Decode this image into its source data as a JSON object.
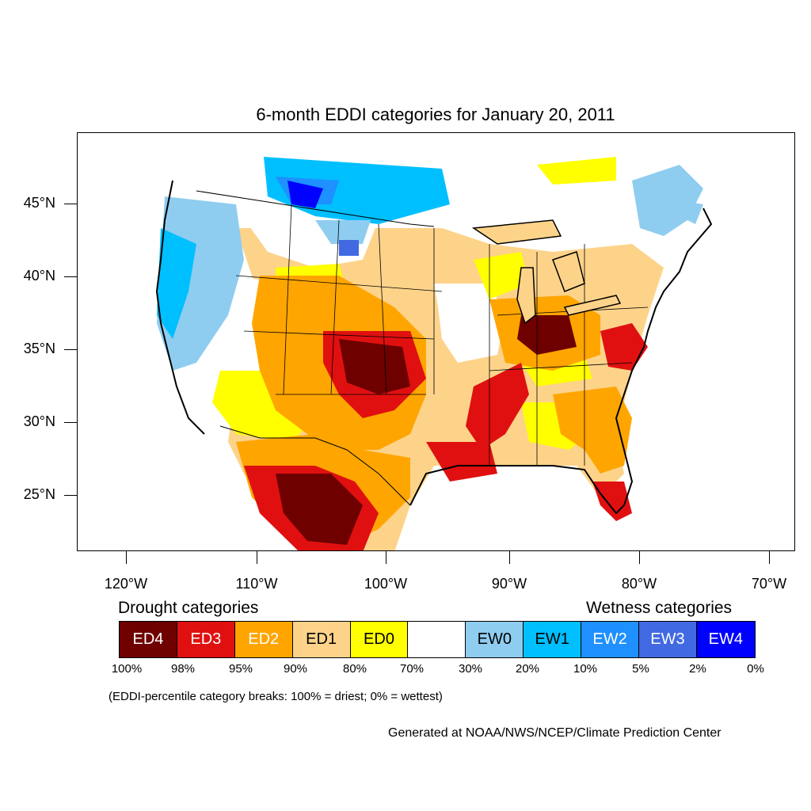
{
  "title": "6-month EDDI categories for January 20, 2011",
  "axes": {
    "lat_labels": [
      "45°N",
      "40°N",
      "35°N",
      "30°N",
      "25°N"
    ],
    "lon_labels": [
      "120°W",
      "110°W",
      "100°W",
      "90°W",
      "80°W",
      "70°W"
    ]
  },
  "legend": {
    "drought_title": "Drought categories",
    "wetness_title": "Wetness categories",
    "categories": [
      {
        "label": "ED4",
        "color": "#6e0000",
        "text_color": "#ffffff"
      },
      {
        "label": "ED3",
        "color": "#e01010",
        "text_color": "#ffffff"
      },
      {
        "label": "ED2",
        "color": "#ffa500",
        "text_color": "#ffffff"
      },
      {
        "label": "ED1",
        "color": "#fdd38a",
        "text_color": "#000000"
      },
      {
        "label": "ED0",
        "color": "#ffff00",
        "text_color": "#000000"
      },
      {
        "label": "",
        "color": "#ffffff",
        "text_color": "#000000"
      },
      {
        "label": "EW0",
        "color": "#8fcdf0",
        "text_color": "#000000"
      },
      {
        "label": "EW1",
        "color": "#00bfff",
        "text_color": "#000000"
      },
      {
        "label": "EW2",
        "color": "#1e90ff",
        "text_color": "#ffffff"
      },
      {
        "label": "EW3",
        "color": "#4169e1",
        "text_color": "#ffffff"
      },
      {
        "label": "EW4",
        "color": "#0000ff",
        "text_color": "#ffffff"
      }
    ],
    "breaks": [
      "100%",
      "98%",
      "95%",
      "90%",
      "80%",
      "70%",
      "30%",
      "20%",
      "10%",
      "5%",
      "2%",
      "0%"
    ]
  },
  "note": "(EDDI-percentile category breaks: 100% = driest; 0% = wettest)",
  "credit": "Generated at NOAA/NWS/NCEP/Climate Prediction Center"
}
